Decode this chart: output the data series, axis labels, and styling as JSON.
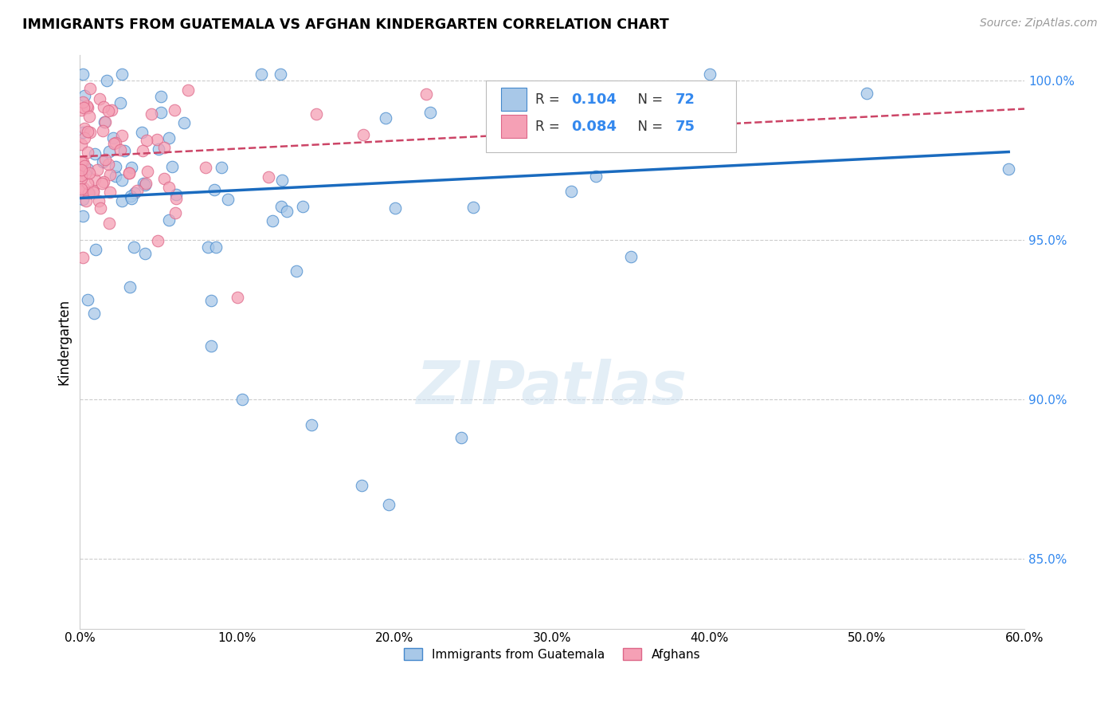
{
  "title": "IMMIGRANTS FROM GUATEMALA VS AFGHAN KINDERGARTEN CORRELATION CHART",
  "source": "Source: ZipAtlas.com",
  "ylabel": "Kindergarten",
  "xmin": 0.0,
  "xmax": 0.6,
  "ymin": 0.828,
  "ymax": 1.008,
  "legend_r_blue": "0.104",
  "legend_n_blue": "72",
  "legend_r_pink": "0.084",
  "legend_n_pink": "75",
  "blue_scatter_color": "#a8c8e8",
  "pink_scatter_color": "#f5a0b5",
  "blue_edge_color": "#4488cc",
  "pink_edge_color": "#dd6688",
  "blue_line_color": "#1a6bbf",
  "pink_line_color": "#cc4466",
  "watermark": "ZIPatlas",
  "blue_line_x": [
    0.0,
    0.59
  ],
  "blue_line_y": [
    0.963,
    0.9775
  ],
  "pink_line_x": [
    0.0,
    0.6
  ],
  "pink_line_y": [
    0.976,
    0.991
  ]
}
